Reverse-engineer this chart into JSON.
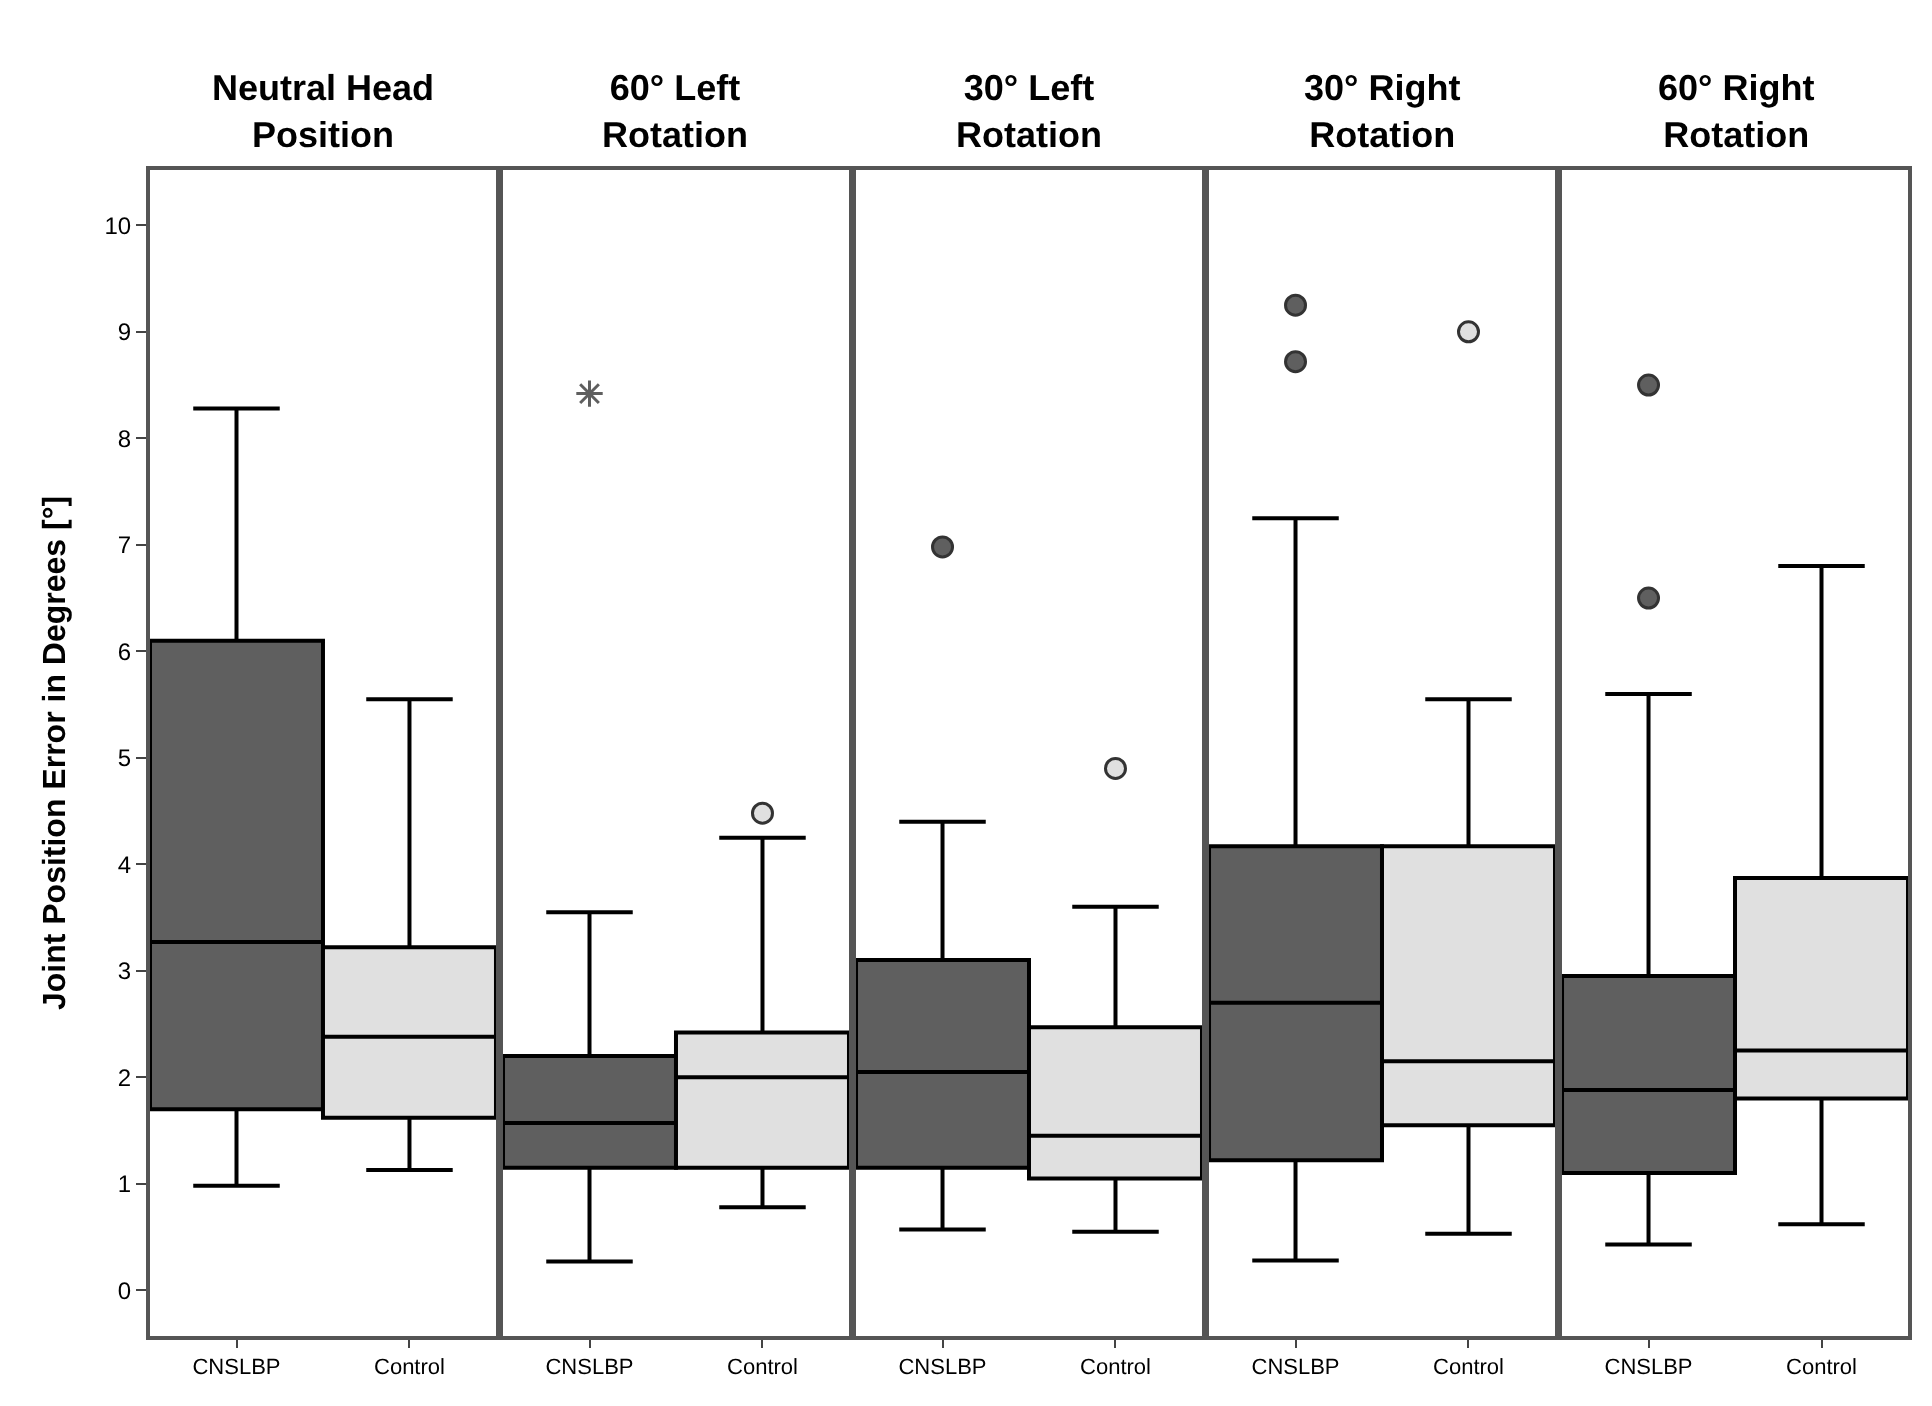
{
  "chart_data": [
    {
      "type": "box",
      "title": "Neutral Head\nPosition",
      "ylabel": "Joint Position Error in Degrees [°]",
      "categories": [
        "CNSLBP",
        "Control"
      ],
      "ylim": [
        -0.43,
        10.52
      ],
      "yticks": [
        0,
        1,
        2,
        3,
        4,
        5,
        6,
        7,
        8,
        9,
        10
      ],
      "series": [
        {
          "color": "#5f5f5f",
          "marker": "circle",
          "boxes": [
            {
              "low": 0.98,
              "q1": 1.7,
              "median": 3.27,
              "q3": 6.1,
              "high": 8.28
            },
            null
          ]
        },
        {
          "color": "#e0e0e0",
          "marker": "circle",
          "boxes": [
            null,
            {
              "low": 1.13,
              "q1": 1.62,
              "median": 2.38,
              "q3": 3.22,
              "high": 5.55
            }
          ]
        }
      ]
    },
    {
      "type": "box",
      "title": "60° Left\nRotation",
      "categories": [
        "CNSLBP",
        "Control"
      ],
      "ylim": [
        -0.43,
        10.52
      ],
      "yticks": [
        0,
        1,
        2,
        3,
        4,
        5,
        6,
        7,
        8,
        9,
        10
      ],
      "tick_labels": "x",
      "series": [
        {
          "color": "#5f5f5f",
          "marker": "star",
          "boxes": [
            {
              "low": 0.27,
              "q1": 1.15,
              "median": 1.57,
              "q3": 2.2,
              "high": 3.55,
              "outliers": [
                8.42
              ]
            },
            null
          ]
        },
        {
          "color": "#e0e0e0",
          "marker": "circle",
          "boxes": [
            null,
            {
              "low": 0.78,
              "q1": 1.15,
              "median": 2.0,
              "q3": 2.42,
              "high": 4.25,
              "outliers": [
                4.48
              ]
            }
          ]
        }
      ]
    },
    {
      "type": "box",
      "title": "30° Left\nRotation",
      "categories": [
        "CNSLBP",
        "Control"
      ],
      "ylim": [
        -0.43,
        10.52
      ],
      "yticks": [
        0,
        1,
        2,
        3,
        4,
        5,
        6,
        7,
        8,
        9,
        10
      ],
      "tick_labels": "x",
      "series": [
        {
          "color": "#5f5f5f",
          "marker": "circle",
          "boxes": [
            {
              "low": 0.57,
              "q1": 1.15,
              "median": 2.05,
              "q3": 3.1,
              "high": 4.4,
              "outliers": [
                6.98
              ]
            },
            null
          ]
        },
        {
          "color": "#e0e0e0",
          "marker": "circle",
          "boxes": [
            null,
            {
              "low": 0.55,
              "q1": 1.05,
              "median": 1.45,
              "q3": 2.47,
              "high": 3.6,
              "outliers": [
                4.9
              ]
            }
          ]
        }
      ]
    },
    {
      "type": "box",
      "title": "30° Right\nRotation",
      "categories": [
        "CNSLBP",
        "Control"
      ],
      "ylim": [
        -0.43,
        10.52
      ],
      "yticks": [
        0,
        1,
        2,
        3,
        4,
        5,
        6,
        7,
        8,
        9,
        10
      ],
      "tick_labels": "x",
      "series": [
        {
          "color": "#5f5f5f",
          "marker": "circle",
          "boxes": [
            {
              "low": 0.28,
              "q1": 1.22,
              "median": 2.7,
              "q3": 4.17,
              "high": 7.25,
              "outliers": [
                8.72,
                9.25
              ]
            },
            null
          ]
        },
        {
          "color": "#e0e0e0",
          "marker": "circle",
          "boxes": [
            null,
            {
              "low": 0.53,
              "q1": 1.55,
              "median": 2.15,
              "q3": 4.17,
              "high": 5.55,
              "outliers": [
                9.0
              ]
            }
          ]
        }
      ]
    },
    {
      "type": "box",
      "title": "60° Right\nRotation",
      "categories": [
        "CNSLBP",
        "Control"
      ],
      "ylim": [
        -0.43,
        10.52
      ],
      "yticks": [
        0,
        1,
        2,
        3,
        4,
        5,
        6,
        7,
        8,
        9,
        10
      ],
      "tick_labels": "x",
      "series": [
        {
          "color": "#5f5f5f",
          "marker": "circle",
          "boxes": [
            {
              "low": 0.43,
              "q1": 1.1,
              "median": 1.88,
              "q3": 2.95,
              "high": 5.6,
              "outliers": [
                6.5,
                8.5
              ]
            },
            null
          ]
        },
        {
          "color": "#e0e0e0",
          "marker": "circle",
          "boxes": [
            null,
            {
              "low": 0.62,
              "q1": 1.8,
              "median": 2.25,
              "q3": 3.87,
              "high": 6.8
            }
          ]
        }
      ]
    }
  ]
}
